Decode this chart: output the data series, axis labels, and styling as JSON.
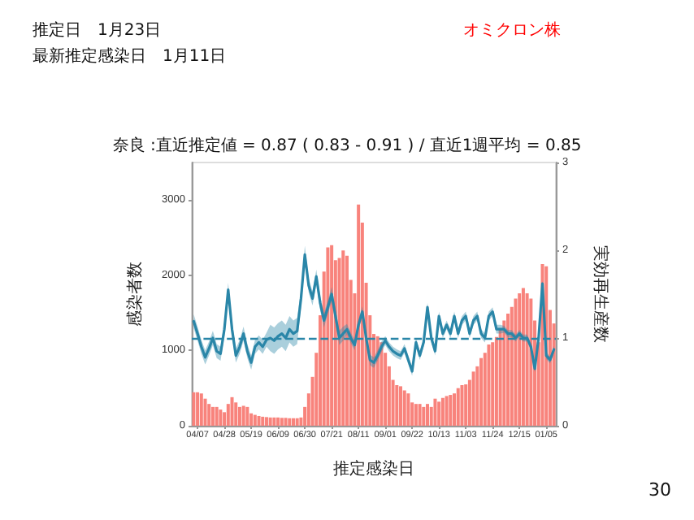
{
  "chart_data": {
    "type": "bar",
    "title": "奈良 :直近推定値 = 0.87 ( 0.83 - 0.91 ) / 直近1週平均 = 0.85",
    "xlabel": "推定感染日",
    "ylabel": "感染者数",
    "y2label": "実効再生産数",
    "annotations": [
      "推定日　1月23日",
      "最新推定感染日　1月11日",
      "オミクロン株",
      "30"
    ],
    "categories": [
      null,
      "04/07",
      null,
      null,
      null,
      null,
      null,
      null,
      "04/28",
      null,
      null,
      null,
      null,
      null,
      null,
      "05/19",
      null,
      null,
      null,
      null,
      null,
      null,
      "06/09",
      null,
      null,
      null,
      null,
      null,
      null,
      "06/30",
      null,
      null,
      null,
      null,
      null,
      null,
      "07/21",
      null,
      null,
      null,
      null,
      null,
      null,
      "08/11",
      null,
      null,
      null,
      null,
      null,
      null,
      "09/01",
      null,
      null,
      null,
      null,
      null,
      null,
      "09/22",
      null,
      null,
      null,
      null,
      null,
      null,
      "10/13",
      null,
      null,
      null,
      null,
      null,
      null,
      "11/03",
      null,
      null,
      null,
      null,
      null,
      null,
      "11/24",
      null,
      null,
      null,
      null,
      null,
      null,
      "12/15",
      null,
      null,
      null,
      null,
      null,
      null,
      "01/05",
      null,
      null
    ],
    "series": [
      {
        "color": "#f8837c",
        "values": [
          445,
          445,
          430,
          360,
          290,
          250,
          250,
          215,
          180,
          290,
          380,
          310,
          250,
          265,
          250,
          165,
          145,
          130,
          120,
          115,
          110,
          110,
          110,
          105,
          105,
          100,
          100,
          100,
          110,
          250,
          430,
          650,
          970,
          1470,
          2050,
          2370,
          2400,
          2200,
          2230,
          2330,
          2260,
          1940,
          1760,
          2940,
          2700,
          1900,
          1470,
          1220,
          1190,
          1110,
          970,
          790,
          610,
          540,
          525,
          470,
          430,
          310,
          290,
          290,
          250,
          290,
          250,
          360,
          320,
          370,
          395,
          410,
          430,
          500,
          540,
          550,
          610,
          720,
          790,
          900,
          970,
          1080,
          1110,
          1180,
          1290,
          1400,
          1490,
          1580,
          1690,
          1760,
          1830,
          1760,
          1690,
          1400,
          1110,
          2150,
          2120,
          1540,
          1360
        ]
      },
      {
        "type": "line",
        "axis": "y2",
        "color": "#2a86a8",
        "values": [
          1.19,
          1.05,
          0.9,
          0.78,
          0.88,
          1.0,
          0.85,
          0.82,
          1.1,
          1.55,
          1.1,
          0.8,
          0.9,
          1.05,
          0.85,
          0.72,
          0.9,
          0.95,
          0.9,
          0.98,
          1.0,
          0.97,
          1.02,
          1.05,
          1.0,
          1.1,
          1.05,
          1.08,
          1.45,
          1.95,
          1.6,
          1.45,
          1.7,
          1.4,
          1.2,
          1.35,
          1.5,
          1.25,
          1.0,
          1.05,
          1.1,
          1.0,
          0.92,
          1.15,
          1.3,
          1.0,
          0.75,
          0.72,
          0.8,
          0.9,
          0.97,
          0.9,
          0.85,
          0.82,
          0.8,
          0.88,
          0.75,
          0.62,
          0.95,
          0.8,
          0.95,
          1.35,
          1.0,
          0.85,
          1.25,
          1.05,
          1.15,
          1.05,
          1.25,
          1.05,
          1.2,
          1.25,
          1.05,
          1.2,
          1.25,
          1.05,
          1.0,
          1.25,
          1.3,
          1.1,
          1.1,
          1.1,
          1.05,
          1.05,
          1.0,
          1.05,
          1.0,
          1.0,
          0.9,
          0.65,
          1.0,
          1.62,
          0.8,
          0.75,
          0.87
        ],
        "lower": [
          1.11,
          0.97,
          0.82,
          0.7,
          0.8,
          0.92,
          0.77,
          0.74,
          1.02,
          1.47,
          1.02,
          0.72,
          0.82,
          0.97,
          0.77,
          0.64,
          0.82,
          0.87,
          0.82,
          0.9,
          0.85,
          0.82,
          0.87,
          0.9,
          0.85,
          0.95,
          0.9,
          0.93,
          1.35,
          1.85,
          1.52,
          1.37,
          1.62,
          1.32,
          1.12,
          1.27,
          1.42,
          1.17,
          0.92,
          0.97,
          1.04,
          0.94,
          0.86,
          1.09,
          1.24,
          0.94,
          0.69,
          0.66,
          0.74,
          0.84,
          0.92,
          0.85,
          0.8,
          0.77,
          0.75,
          0.83,
          0.7,
          0.57,
          0.9,
          0.75,
          0.9,
          1.3,
          0.95,
          0.8,
          1.2,
          1.0,
          1.1,
          1.0,
          1.2,
          1.0,
          1.15,
          1.2,
          1.0,
          1.15,
          1.2,
          1.0,
          0.95,
          1.2,
          1.25,
          1.05,
          1.05,
          1.06,
          1.01,
          1.01,
          0.96,
          1.01,
          0.96,
          0.96,
          0.86,
          0.61,
          0.96,
          1.58,
          0.76,
          0.71,
          0.83
        ],
        "upper": [
          1.27,
          1.13,
          0.98,
          0.86,
          0.96,
          1.08,
          0.93,
          0.9,
          1.18,
          1.63,
          1.18,
          0.88,
          0.98,
          1.13,
          0.93,
          0.8,
          0.98,
          1.03,
          0.98,
          1.06,
          1.15,
          1.12,
          1.17,
          1.2,
          1.15,
          1.25,
          1.2,
          1.23,
          1.55,
          2.05,
          1.68,
          1.53,
          1.78,
          1.48,
          1.28,
          1.43,
          1.58,
          1.33,
          1.08,
          1.13,
          1.16,
          1.06,
          0.98,
          1.21,
          1.36,
          1.06,
          0.81,
          0.78,
          0.86,
          0.96,
          1.02,
          0.95,
          0.9,
          0.87,
          0.85,
          0.93,
          0.8,
          0.67,
          1.0,
          0.85,
          1.0,
          1.4,
          1.05,
          0.9,
          1.3,
          1.1,
          1.2,
          1.1,
          1.3,
          1.1,
          1.25,
          1.3,
          1.1,
          1.25,
          1.3,
          1.1,
          1.05,
          1.3,
          1.35,
          1.15,
          1.15,
          1.14,
          1.09,
          1.09,
          1.04,
          1.09,
          1.04,
          1.04,
          0.94,
          0.69,
          1.04,
          1.66,
          0.84,
          0.79,
          0.91
        ]
      }
    ],
    "ylim": [
      0,
      3500
    ],
    "yticks": [
      0,
      1000,
      2000,
      3000
    ],
    "y2lim": [
      0,
      3
    ],
    "y2ticks": [
      0,
      1,
      2,
      3
    ],
    "ref_lines": [
      {
        "axis": "y2",
        "value": 1,
        "line_style": "dashed",
        "color": "#2a86a8"
      }
    ],
    "grid": false,
    "marker": "none",
    "line_style": "solid"
  }
}
